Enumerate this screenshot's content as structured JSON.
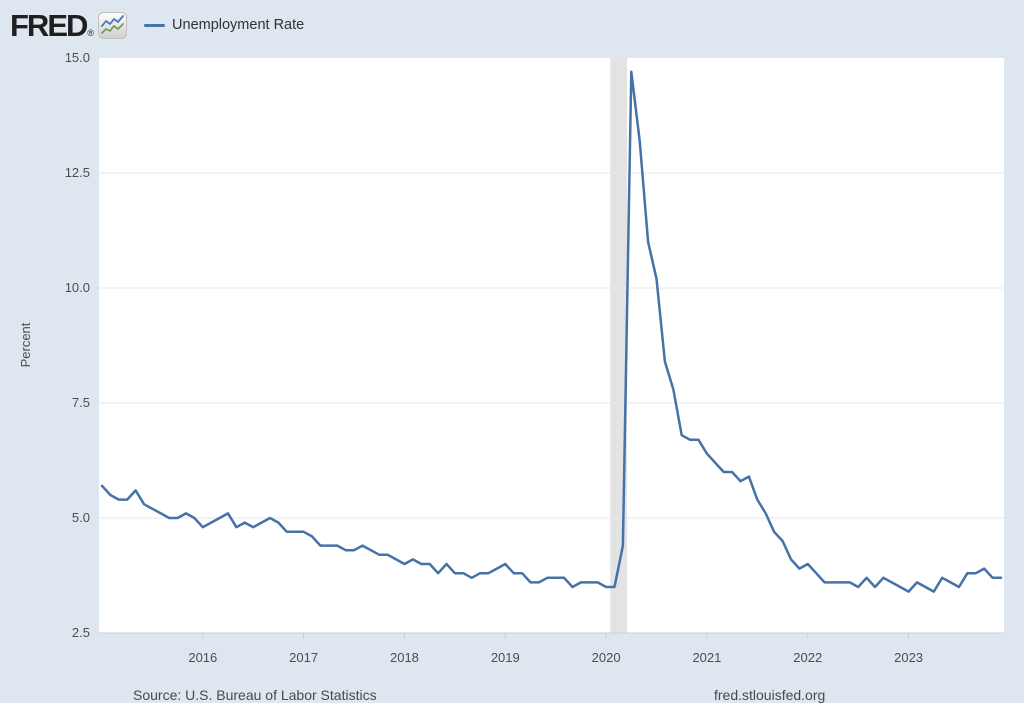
{
  "header": {
    "logo_text": "FRED",
    "registered_mark": "®",
    "legend": {
      "label": "Unemployment Rate"
    }
  },
  "footer": {
    "source": "Source: U.S. Bureau of Labor Statistics",
    "site": "fred.stlouisfed.org"
  },
  "colors": {
    "page_bg": "#dee6f0",
    "plot_bg": "#ffffff",
    "series_line": "#4572a7",
    "recession_band": "#e3e3e3",
    "gridline": "#e9e9e9",
    "axis_line": "#c4d0dd",
    "logo_icon_blue": "#4a77b4",
    "logo_icon_green": "#6fa24e"
  },
  "chart_data": {
    "type": "line",
    "title": "Unemployment Rate",
    "xlabel": "",
    "ylabel": "Percent",
    "ylim": [
      2.5,
      15.0
    ],
    "y_ticks": [
      15.0,
      12.5,
      10.0,
      7.5,
      5.0,
      2.5
    ],
    "x_start": "2015-01",
    "x_end": "2023-12",
    "frequency": "monthly",
    "x_tick_labels": [
      "2016",
      "2017",
      "2018",
      "2019",
      "2020",
      "2021",
      "2022",
      "2023"
    ],
    "grid": true,
    "legend_position": "top-left",
    "series": [
      {
        "name": "Unemployment Rate",
        "color": "#4572a7",
        "values": [
          5.7,
          5.5,
          5.4,
          5.4,
          5.6,
          5.3,
          5.2,
          5.1,
          5.0,
          5.0,
          5.1,
          5.0,
          4.8,
          4.9,
          5.0,
          5.1,
          4.8,
          4.9,
          4.8,
          4.9,
          5.0,
          4.9,
          4.7,
          4.7,
          4.7,
          4.6,
          4.4,
          4.4,
          4.4,
          4.3,
          4.3,
          4.4,
          4.3,
          4.2,
          4.2,
          4.1,
          4.0,
          4.1,
          4.0,
          4.0,
          3.8,
          4.0,
          3.8,
          3.8,
          3.7,
          3.8,
          3.8,
          3.9,
          4.0,
          3.8,
          3.8,
          3.6,
          3.6,
          3.7,
          3.7,
          3.7,
          3.5,
          3.6,
          3.6,
          3.6,
          3.5,
          3.5,
          4.4,
          14.7,
          13.2,
          11.0,
          10.2,
          8.4,
          7.8,
          6.8,
          6.7,
          6.7,
          6.4,
          6.2,
          6.0,
          6.0,
          5.8,
          5.9,
          5.4,
          5.1,
          4.7,
          4.5,
          4.1,
          3.9,
          4.0,
          3.8,
          3.6,
          3.6,
          3.6,
          3.6,
          3.5,
          3.7,
          3.5,
          3.7,
          3.6,
          3.5,
          3.4,
          3.6,
          3.5,
          3.4,
          3.7,
          3.6,
          3.5,
          3.8,
          3.8,
          3.9,
          3.7,
          3.7
        ]
      }
    ],
    "recession_bands": [
      {
        "start": "2020-02",
        "end": "2020-04"
      }
    ]
  }
}
